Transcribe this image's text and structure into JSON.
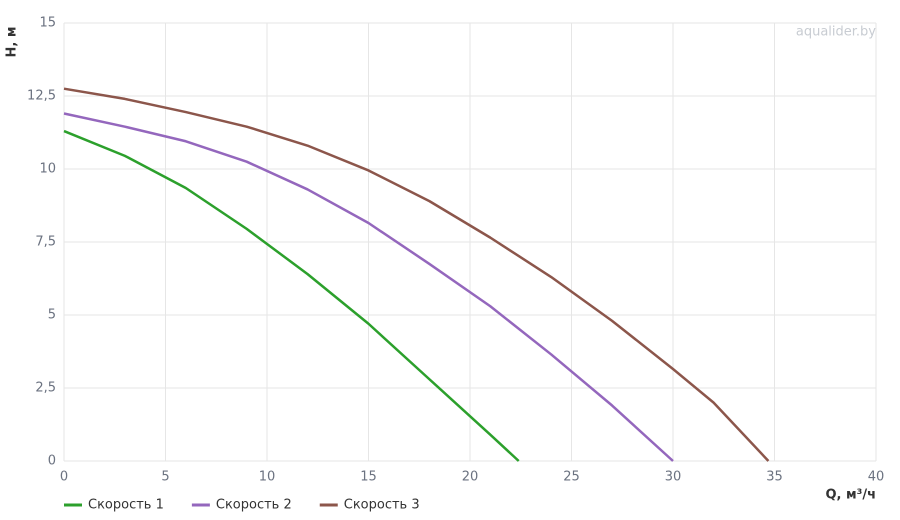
{
  "chart_data": {
    "type": "line",
    "xlabel": "Q, м³/ч",
    "ylabel": "H, м",
    "watermark": "aqualider.by",
    "xlim": [
      0,
      40
    ],
    "xticks": [
      0,
      5,
      10,
      15,
      20,
      25,
      30,
      35,
      40
    ],
    "ylim": [
      0,
      15
    ],
    "yticks": [
      0,
      {
        "value": 2.5,
        "label": "2,5"
      },
      5,
      {
        "value": 7.5,
        "label": "7,5"
      },
      10,
      {
        "value": 12.5,
        "label": "12,5"
      },
      15
    ],
    "grid": true,
    "legend": "bottom-left",
    "series": [
      {
        "name": "Скорость 1",
        "color": "#2ca02c",
        "x": [
          0,
          3,
          6,
          9,
          12,
          15,
          18,
          21,
          22.4
        ],
        "values": [
          11.3,
          10.45,
          9.35,
          7.95,
          6.4,
          4.7,
          2.8,
          0.9,
          0
        ]
      },
      {
        "name": "Скорость 2",
        "color": "#9467bd",
        "x": [
          0,
          3,
          6,
          9,
          12,
          15,
          18,
          21,
          24,
          27,
          30
        ],
        "values": [
          11.9,
          11.45,
          10.95,
          10.25,
          9.3,
          8.15,
          6.75,
          5.3,
          3.65,
          1.9,
          0
        ]
      },
      {
        "name": "Скорость 3",
        "color": "#8c564b",
        "x": [
          0,
          3,
          6,
          9,
          12,
          15,
          18,
          21,
          24,
          27,
          30,
          32,
          34.7
        ],
        "values": [
          12.75,
          12.4,
          11.95,
          11.45,
          10.8,
          9.95,
          8.9,
          7.65,
          6.3,
          4.8,
          3.15,
          2.0,
          0
        ]
      }
    ]
  }
}
